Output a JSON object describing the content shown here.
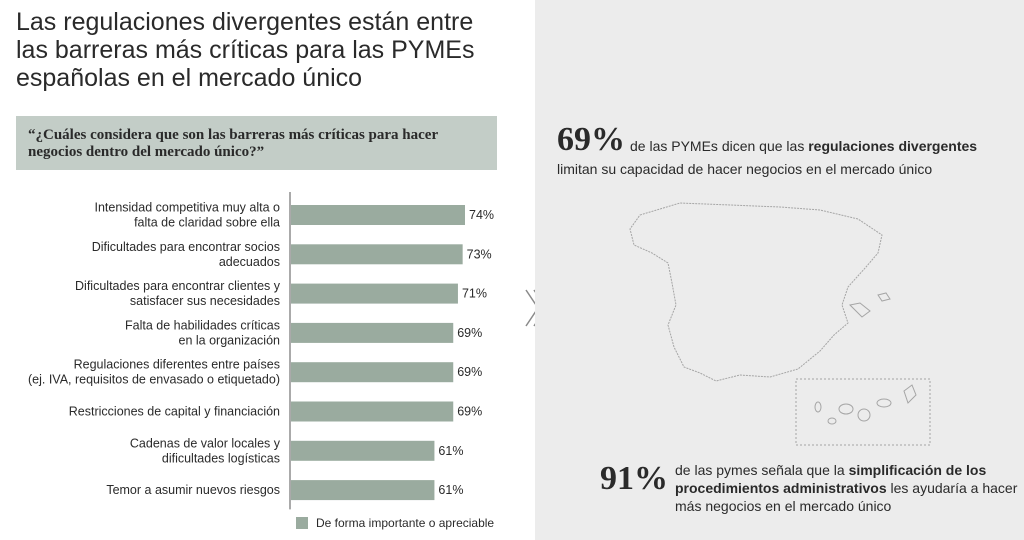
{
  "title": "Las regulaciones divergentes están entre las barreras más críticas para las PYMEs españolas en el mercado único",
  "question": "“¿Cuáles considera que son las barreras más críticas para hacer negocios dentro del mercado único?”",
  "chart_data": {
    "type": "bar",
    "orientation": "horizontal",
    "categories": [
      [
        "Intensidad competitiva muy alta o",
        "falta de claridad sobre ella"
      ],
      [
        "Dificultades para encontrar socios",
        "adecuados"
      ],
      [
        "Dificultades para encontrar clientes y",
        "satisfacer sus necesidades"
      ],
      [
        "Falta de habilidades críticas",
        "en la organización"
      ],
      [
        "Regulaciones diferentes entre países",
        "(ej. IVA, requisitos de envasado o etiquetado)"
      ],
      [
        "Restricciones de capital y financiación"
      ],
      [
        "Cadenas de valor locales y",
        "dificultades logísticas"
      ],
      [
        "Temor a asumir nuevos riesgos"
      ]
    ],
    "values": [
      74,
      73,
      71,
      69,
      69,
      69,
      61,
      61
    ],
    "value_labels": [
      "74%",
      "73%",
      "71%",
      "69%",
      "69%",
      "69%",
      "61%",
      "61%"
    ],
    "series_name": "De forma importante o apreciable",
    "bar_color": "#9aab9f",
    "grid": false
  },
  "stat1": {
    "value": "69%",
    "text_part1": "de las PYMEs dicen que las ",
    "text_bold": "regulaciones divergentes",
    "text_part2": "limitan su capacidad de hacer negocios en el mercado único"
  },
  "stat2": {
    "value": "91%",
    "text_part1": "de las pymes señala que la ",
    "text_bold": "simplificación de los procedimientos administrativos",
    "text_part2": " les ayudaría a hacer más negocios en el mercado único"
  },
  "icons": {
    "separator": "chevron-right-icon",
    "map": "spain-map-icon"
  }
}
